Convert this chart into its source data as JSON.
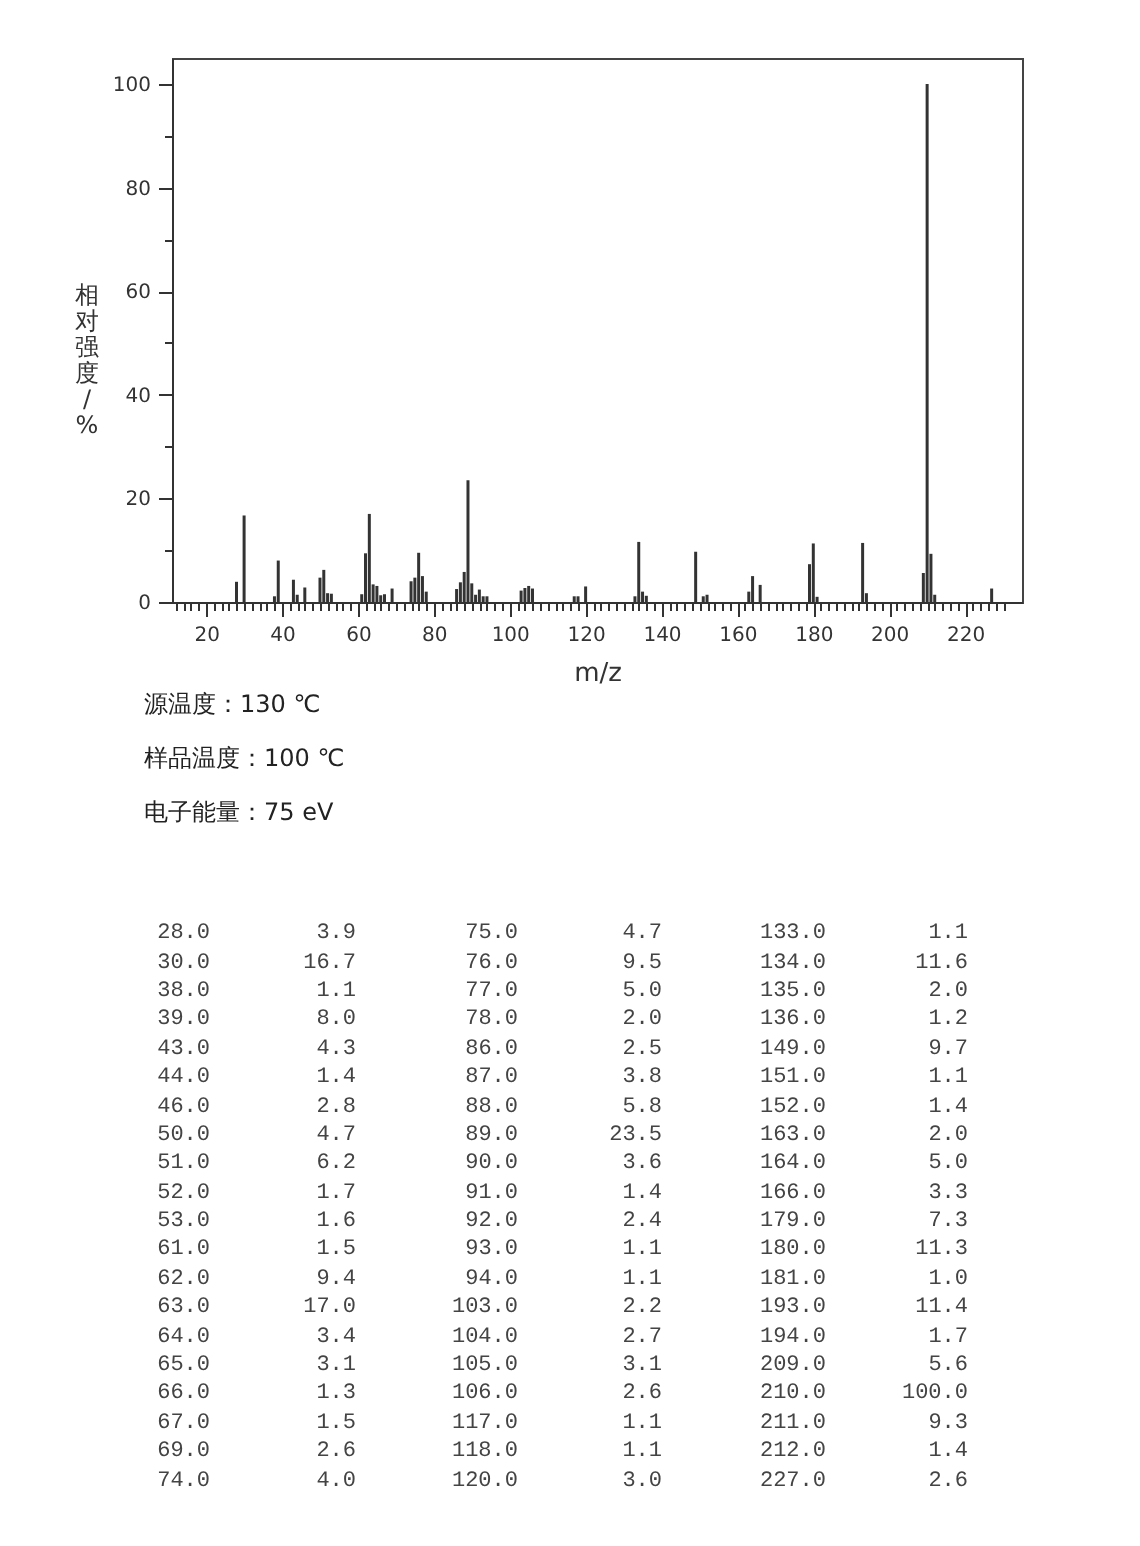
{
  "chart_data": [
    {
      "type": "bar",
      "xlabel": "m/z",
      "ylabel": "相对强度/%",
      "x": [
        28,
        30,
        38,
        39,
        43,
        44,
        46,
        50,
        51,
        52,
        53,
        61,
        62,
        63,
        64,
        65,
        66,
        67,
        69,
        74,
        75,
        76,
        77,
        78,
        86,
        87,
        88,
        89,
        90,
        91,
        92,
        93,
        94,
        103,
        104,
        105,
        106,
        117,
        118,
        120,
        133,
        134,
        135,
        136,
        149,
        151,
        152,
        163,
        164,
        166,
        179,
        180,
        181,
        193,
        194,
        209,
        210,
        211,
        212,
        227
      ],
      "values": [
        3.9,
        16.7,
        1.1,
        8.0,
        4.3,
        1.4,
        2.8,
        4.7,
        6.2,
        1.7,
        1.6,
        1.5,
        9.4,
        17.0,
        3.4,
        3.1,
        1.3,
        1.5,
        2.6,
        4.0,
        4.7,
        9.5,
        5.0,
        2.0,
        2.5,
        3.8,
        5.8,
        23.5,
        3.6,
        1.4,
        2.4,
        1.1,
        1.1,
        2.2,
        2.7,
        3.1,
        2.6,
        1.1,
        1.1,
        3.0,
        1.1,
        11.6,
        2.0,
        1.2,
        9.7,
        1.1,
        1.4,
        2.0,
        5.0,
        3.3,
        7.3,
        11.3,
        1.0,
        11.4,
        1.7,
        5.6,
        100.0,
        9.3,
        1.4,
        2.6
      ],
      "color": "#333333",
      "xlim": [
        11,
        235
      ],
      "xticks": [
        {
          "value": 12,
          "label": null
        },
        {
          "value": 14,
          "label": null
        },
        {
          "value": 16,
          "label": null
        },
        {
          "value": 18,
          "label": null
        },
        20,
        {
          "value": 22,
          "label": null
        },
        {
          "value": 24,
          "label": null
        },
        {
          "value": 26,
          "label": null
        },
        {
          "value": 28,
          "label": null
        },
        {
          "value": 30,
          "label": null
        },
        {
          "value": 32,
          "label": null
        },
        {
          "value": 34,
          "label": null
        },
        {
          "value": 36,
          "label": null
        },
        {
          "value": 38,
          "label": null
        },
        40,
        {
          "value": 42,
          "label": null
        },
        {
          "value": 44,
          "label": null
        },
        {
          "value": 46,
          "label": null
        },
        {
          "value": 48,
          "label": null
        },
        {
          "value": 50,
          "label": null
        },
        {
          "value": 52,
          "label": null
        },
        {
          "value": 54,
          "label": null
        },
        {
          "value": 56,
          "label": null
        },
        {
          "value": 58,
          "label": null
        },
        60,
        {
          "value": 62,
          "label": null
        },
        {
          "value": 64,
          "label": null
        },
        {
          "value": 66,
          "label": null
        },
        {
          "value": 68,
          "label": null
        },
        {
          "value": 70,
          "label": null
        },
        {
          "value": 72,
          "label": null
        },
        {
          "value": 74,
          "label": null
        },
        {
          "value": 76,
          "label": null
        },
        {
          "value": 78,
          "label": null
        },
        80,
        {
          "value": 82,
          "label": null
        },
        {
          "value": 84,
          "label": null
        },
        {
          "value": 86,
          "label": null
        },
        {
          "value": 88,
          "label": null
        },
        {
          "value": 90,
          "label": null
        },
        {
          "value": 92,
          "label": null
        },
        {
          "value": 94,
          "label": null
        },
        {
          "value": 96,
          "label": null
        },
        {
          "value": 98,
          "label": null
        },
        100,
        {
          "value": 102,
          "label": null
        },
        {
          "value": 104,
          "label": null
        },
        {
          "value": 106,
          "label": null
        },
        {
          "value": 108,
          "label": null
        },
        {
          "value": 110,
          "label": null
        },
        {
          "value": 112,
          "label": null
        },
        {
          "value": 114,
          "label": null
        },
        {
          "value": 116,
          "label": null
        },
        {
          "value": 118,
          "label": null
        },
        120,
        {
          "value": 122,
          "label": null
        },
        {
          "value": 124,
          "label": null
        },
        {
          "value": 126,
          "label": null
        },
        {
          "value": 128,
          "label": null
        },
        {
          "value": 130,
          "label": null
        },
        {
          "value": 132,
          "label": null
        },
        {
          "value": 134,
          "label": null
        },
        {
          "value": 136,
          "label": null
        },
        {
          "value": 138,
          "label": null
        },
        140,
        {
          "value": 142,
          "label": null
        },
        {
          "value": 144,
          "label": null
        },
        {
          "value": 146,
          "label": null
        },
        {
          "value": 148,
          "label": null
        },
        {
          "value": 150,
          "label": null
        },
        {
          "value": 152,
          "label": null
        },
        {
          "value": 154,
          "label": null
        },
        {
          "value": 156,
          "label": null
        },
        {
          "value": 158,
          "label": null
        },
        160,
        {
          "value": 162,
          "label": null
        },
        {
          "value": 164,
          "label": null
        },
        {
          "value": 166,
          "label": null
        },
        {
          "value": 168,
          "label": null
        },
        {
          "value": 170,
          "label": null
        },
        {
          "value": 172,
          "label": null
        },
        {
          "value": 174,
          "label": null
        },
        {
          "value": 176,
          "label": null
        },
        {
          "value": 178,
          "label": null
        },
        180,
        {
          "value": 182,
          "label": null
        },
        {
          "value": 184,
          "label": null
        },
        {
          "value": 186,
          "label": null
        },
        {
          "value": 188,
          "label": null
        },
        {
          "value": 190,
          "label": null
        },
        {
          "value": 192,
          "label": null
        },
        {
          "value": 194,
          "label": null
        },
        {
          "value": 196,
          "label": null
        },
        {
          "value": 198,
          "label": null
        },
        200,
        {
          "value": 202,
          "label": null
        },
        {
          "value": 204,
          "label": null
        },
        {
          "value": 206,
          "label": null
        },
        {
          "value": 208,
          "label": null
        },
        {
          "value": 210,
          "label": null
        },
        {
          "value": 212,
          "label": null
        },
        {
          "value": 214,
          "label": null
        },
        {
          "value": 216,
          "label": null
        },
        {
          "value": 218,
          "label": null
        },
        220,
        {
          "value": 222,
          "label": null
        },
        {
          "value": 224,
          "label": null
        },
        {
          "value": 226,
          "label": null
        },
        {
          "value": 228,
          "label": null
        },
        {
          "value": 230,
          "label": null
        }
      ],
      "ylim": [
        0,
        105
      ],
      "yticks": [
        0,
        {
          "value": 10,
          "label": null
        },
        20,
        {
          "value": 30,
          "label": null
        },
        40,
        {
          "value": 50,
          "label": null
        },
        60,
        {
          "value": 70,
          "label": null
        },
        80,
        {
          "value": 90,
          "label": null
        },
        100
      ],
      "annotations": [
        "源温度：130 ℃",
        "样品温度：100 ℃",
        "电子能量：75 eV"
      ]
    },
    {
      "type": "other",
      "annotations": [
        "28.0",
        "3.9",
        "75.0",
        "4.7",
        "133.0",
        "1.1",
        "30.0",
        "16.7",
        "76.0",
        "9.5",
        "134.0",
        "11.6",
        "38.0",
        "1.1",
        "77.0",
        "5.0",
        "135.0",
        "2.0",
        "39.0",
        "8.0",
        "78.0",
        "2.0",
        "136.0",
        "1.2",
        "43.0",
        "4.3",
        "86.0",
        "2.5",
        "149.0",
        "9.7",
        "44.0",
        "1.4",
        "87.0",
        "3.8",
        "151.0",
        "1.1",
        "46.0",
        "2.8",
        "88.0",
        "5.8",
        "152.0",
        "1.4",
        "50.0",
        "4.7",
        "89.0",
        "23.5",
        "163.0",
        "2.0",
        "51.0",
        "6.2",
        "90.0",
        "3.6",
        "164.0",
        "5.0",
        "52.0",
        "1.7",
        "91.0",
        "1.4",
        "166.0",
        "3.3",
        "53.0",
        "1.6",
        "92.0",
        "2.4",
        "179.0",
        "7.3",
        "61.0",
        "1.5",
        "93.0",
        "1.1",
        "180.0",
        "11.3",
        "62.0",
        "9.4",
        "94.0",
        "1.1",
        "181.0",
        "1.0",
        "63.0",
        "17.0",
        "103.0",
        "2.2",
        "193.0",
        "11.4",
        "64.0",
        "3.4",
        "104.0",
        "2.7",
        "194.0",
        "1.7",
        "65.0",
        "3.1",
        "105.0",
        "3.1",
        "209.0",
        "5.6",
        "66.0",
        "1.3",
        "106.0",
        "2.6",
        "210.0",
        "100.0",
        "67.0",
        "1.5",
        "117.0",
        "1.1",
        "211.0",
        "9.3",
        "69.0",
        "2.6",
        "118.0",
        "1.1",
        "212.0",
        "1.4",
        "74.0",
        "4.0",
        "120.0",
        "3.0",
        "227.0",
        "2.6"
      ]
    }
  ]
}
